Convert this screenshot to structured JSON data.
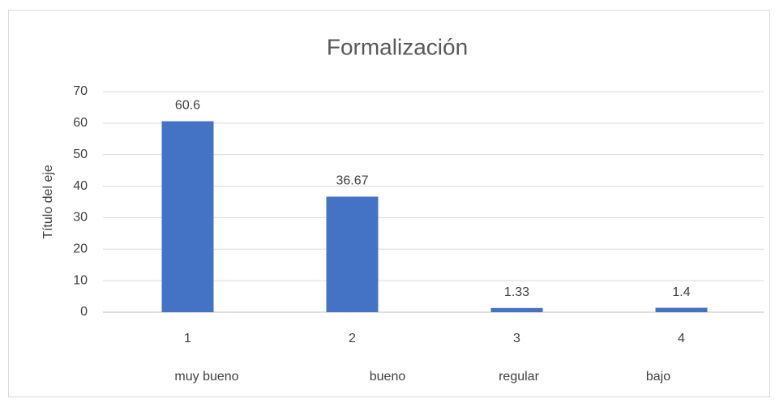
{
  "chart_data": {
    "type": "bar",
    "title": "Formalización",
    "y_axis_label": "Título del eje",
    "categories": [
      "1",
      "2",
      "3",
      "4"
    ],
    "category_labels": [
      "muy bueno",
      "bueno",
      "regular",
      "bajo"
    ],
    "values": [
      60.6,
      36.67,
      1.33,
      1.4
    ],
    "color": "#4472c4",
    "ylim": [
      0,
      70
    ],
    "yticks": [
      0,
      10,
      20,
      30,
      40,
      50,
      60,
      70
    ],
    "grid": true
  }
}
